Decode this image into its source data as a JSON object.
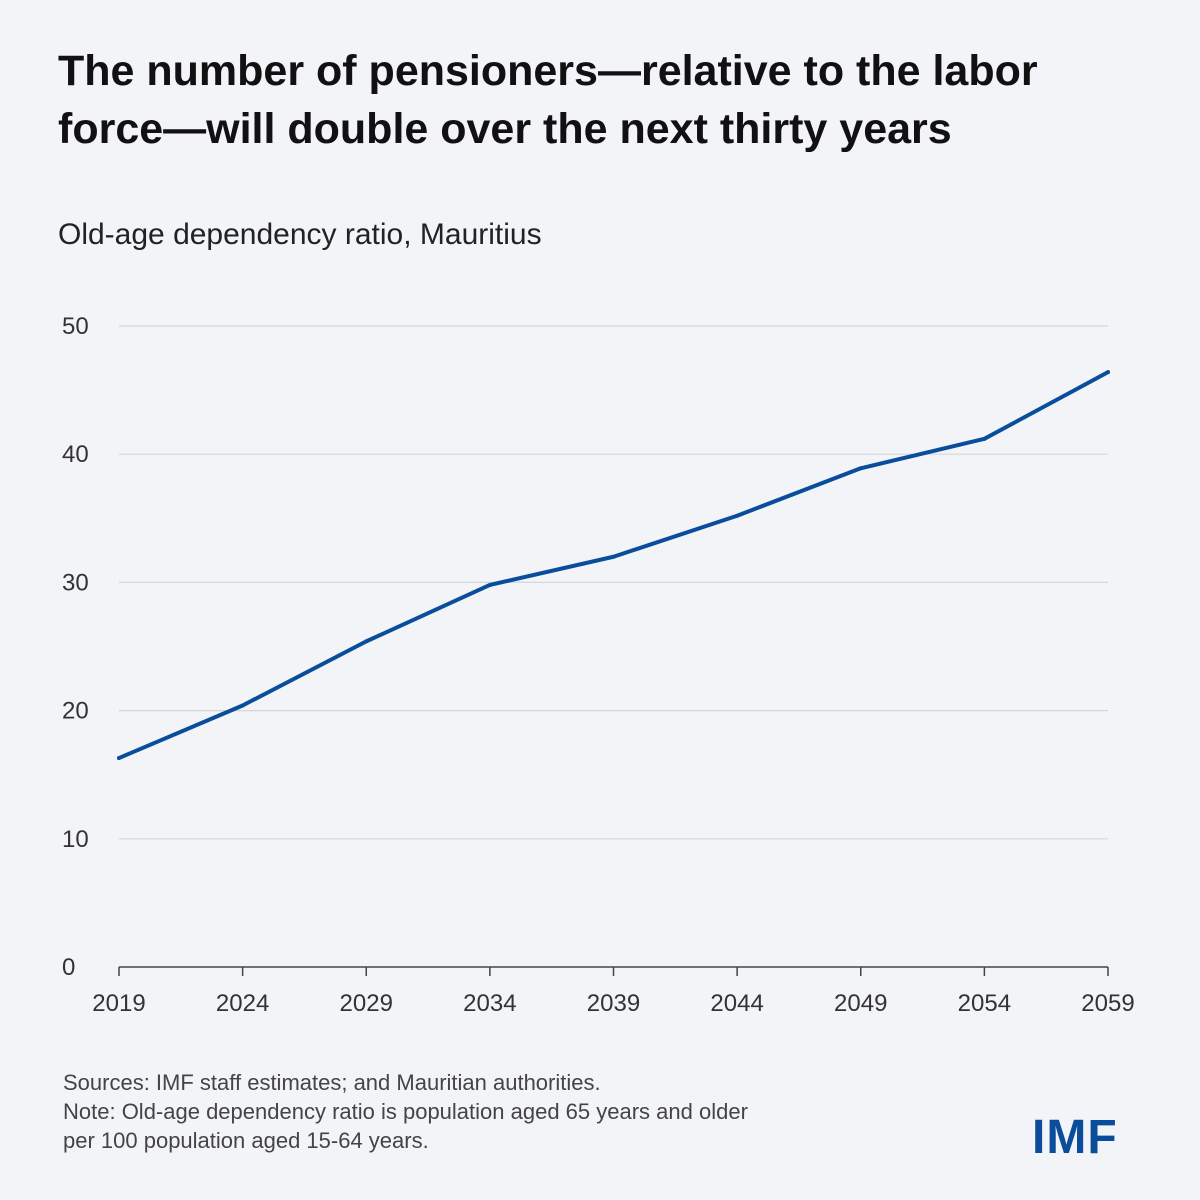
{
  "header": {
    "title_line1": "The number of pensioners—relative to the labor",
    "title_line2": "force—will double over the next thirty years"
  },
  "chart_data": {
    "type": "line",
    "title": "The number of pensioners—relative to the labor force—will double over the next thirty years",
    "subtitle": "Old-age dependency ratio, Mauritius",
    "xlabel": "",
    "ylabel": "",
    "categories": [
      "2019",
      "2024",
      "2029",
      "2034",
      "2039",
      "2044",
      "2049",
      "2054",
      "2059"
    ],
    "series": [
      {
        "name": "Old-age dependency ratio",
        "values": [
          16.3,
          20.4,
          25.4,
          29.8,
          32.0,
          35.2,
          38.9,
          41.2,
          46.4
        ]
      }
    ],
    "yticks": [
      0,
      10,
      20,
      30,
      40,
      50
    ],
    "ylim": [
      0,
      50
    ],
    "grid": true,
    "line_color": "#0a4e9b"
  },
  "footer": {
    "sources": "Sources: IMF staff estimates; and Mauritian authorities.",
    "note_line1": "Note: Old-age dependency ratio is population aged 65 years and older",
    "note_line2": "per 100 population aged 15-64 years."
  },
  "logo": {
    "text": "IMF"
  }
}
